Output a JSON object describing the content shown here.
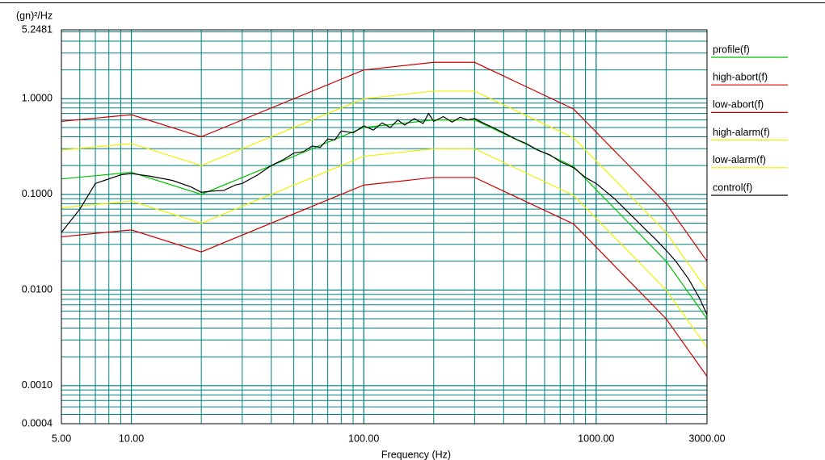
{
  "chart_data": {
    "type": "line",
    "y_label": "(gn)²/Hz",
    "x_label": "Frequency (Hz)",
    "xscale": "log",
    "yscale": "log",
    "grid": true,
    "legend": "right",
    "xlim": [
      5,
      3000
    ],
    "ylim": [
      0.0004,
      5.2481
    ],
    "xticks": [
      {
        "value": 5,
        "label": "5.00"
      },
      {
        "value": 10,
        "label": "10.00"
      },
      {
        "value": 100,
        "label": "100.00"
      },
      {
        "value": 1000,
        "label": "1000.00"
      },
      {
        "value": 3000,
        "label": "3000.00"
      }
    ],
    "yticks": [
      5.2481,
      {
        "value": 1,
        "label": "1.0000"
      },
      {
        "value": 0.1,
        "label": "0.1000"
      },
      {
        "value": 0.01,
        "label": "0.0100"
      },
      {
        "value": 0.001,
        "label": "0.0010"
      },
      {
        "value": 0.0004,
        "label": "0.0004"
      }
    ],
    "series": [
      {
        "name": "profile(f)",
        "color": "#00c000",
        "x": [
          5,
          10,
          20,
          100,
          200,
          300,
          800,
          2000,
          3000
        ],
        "values": [
          0.145,
          0.17,
          0.1,
          0.5,
          0.6,
          0.6,
          0.195,
          0.02,
          0.005
        ]
      },
      {
        "name": "high-abort(f)",
        "color": "#d00000",
        "x": [
          5,
          10,
          20,
          100,
          200,
          300,
          800,
          2000,
          3000
        ],
        "values": [
          0.58,
          0.68,
          0.4,
          2.0,
          2.4,
          2.4,
          0.78,
          0.08,
          0.02
        ]
      },
      {
        "name": "low-abort(f)",
        "color": "#d00000",
        "x": [
          5,
          10,
          20,
          100,
          200,
          300,
          800,
          2000,
          3000
        ],
        "values": [
          0.036,
          0.0425,
          0.025,
          0.125,
          0.15,
          0.15,
          0.049,
          0.005,
          0.00125
        ]
      },
      {
        "name": "high-alarm(f)",
        "color": "#f0f000",
        "x": [
          5,
          10,
          20,
          100,
          200,
          300,
          800,
          2000,
          3000
        ],
        "values": [
          0.29,
          0.34,
          0.2,
          1.0,
          1.2,
          1.2,
          0.39,
          0.04,
          0.01
        ]
      },
      {
        "name": "low-alarm(f)",
        "color": "#f0f000",
        "x": [
          5,
          10,
          20,
          100,
          200,
          300,
          800,
          2000,
          3000
        ],
        "values": [
          0.0725,
          0.085,
          0.05,
          0.25,
          0.3,
          0.3,
          0.0975,
          0.01,
          0.0025
        ]
      },
      {
        "name": "control(f)",
        "color": "#000000",
        "x": [
          5,
          6,
          7,
          8,
          9,
          10,
          12,
          15,
          18,
          20,
          22,
          25,
          28,
          30,
          35,
          40,
          45,
          50,
          55,
          60,
          65,
          70,
          75,
          80,
          90,
          100,
          110,
          120,
          130,
          140,
          150,
          165,
          180,
          190,
          200,
          220,
          240,
          260,
          280,
          300,
          330,
          360,
          400,
          450,
          500,
          560,
          630,
          700,
          800,
          900,
          1000,
          1200,
          1400,
          1600,
          1800,
          2000,
          2200,
          2500,
          2800,
          3000
        ],
        "values": [
          0.04,
          0.07,
          0.13,
          0.145,
          0.16,
          0.165,
          0.155,
          0.14,
          0.12,
          0.105,
          0.108,
          0.11,
          0.125,
          0.13,
          0.16,
          0.2,
          0.23,
          0.27,
          0.28,
          0.32,
          0.31,
          0.38,
          0.37,
          0.46,
          0.44,
          0.52,
          0.47,
          0.56,
          0.5,
          0.6,
          0.53,
          0.62,
          0.55,
          0.7,
          0.58,
          0.65,
          0.57,
          0.64,
          0.6,
          0.62,
          0.55,
          0.5,
          0.44,
          0.38,
          0.34,
          0.29,
          0.26,
          0.22,
          0.19,
          0.15,
          0.13,
          0.09,
          0.062,
          0.045,
          0.034,
          0.026,
          0.02,
          0.013,
          0.008,
          0.0055
        ]
      }
    ]
  }
}
